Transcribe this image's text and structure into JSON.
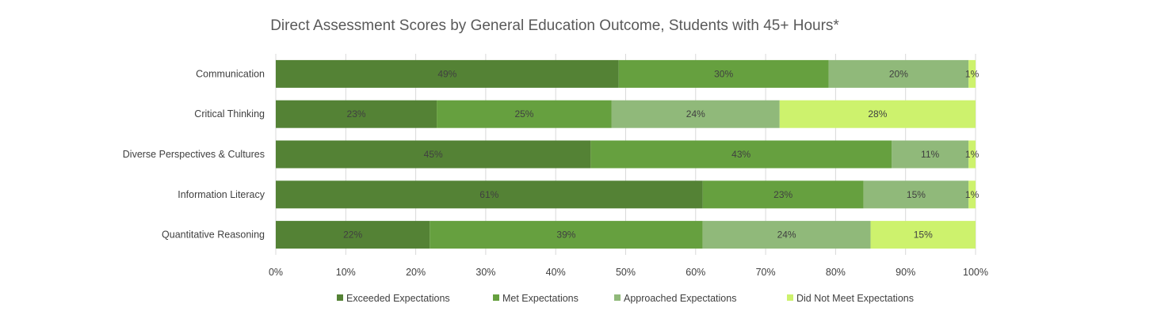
{
  "chart_data": {
    "type": "bar",
    "orientation": "horizontal",
    "stacked": "percent",
    "title": "Direct Assessment Scores by General Education Outcome, Students with 45+ Hours*",
    "categories": [
      "Communication",
      "Critical Thinking",
      "Diverse Perspectives & Cultures",
      "Information Literacy",
      "Quantitative Reasoning"
    ],
    "series": [
      {
        "name": "Exceeded Expectations",
        "color": "#548235",
        "values": [
          49,
          23,
          45,
          61,
          22
        ]
      },
      {
        "name": "Met Expectations",
        "color": "#66a03f",
        "values": [
          30,
          25,
          43,
          23,
          39
        ]
      },
      {
        "name": "Approached Expectations",
        "color": "#90b97a",
        "values": [
          20,
          24,
          11,
          15,
          24
        ]
      },
      {
        "name": "Did Not Meet Expectations",
        "color": "#cdf26d",
        "values": [
          1,
          28,
          1,
          1,
          15
        ]
      }
    ],
    "xlim": [
      0,
      100
    ],
    "xticks": [
      "0%",
      "10%",
      "20%",
      "30%",
      "40%",
      "50%",
      "60%",
      "70%",
      "80%",
      "90%",
      "100%"
    ],
    "grid": "vertical",
    "legend": "bottom",
    "data_label_suffix": "%"
  }
}
